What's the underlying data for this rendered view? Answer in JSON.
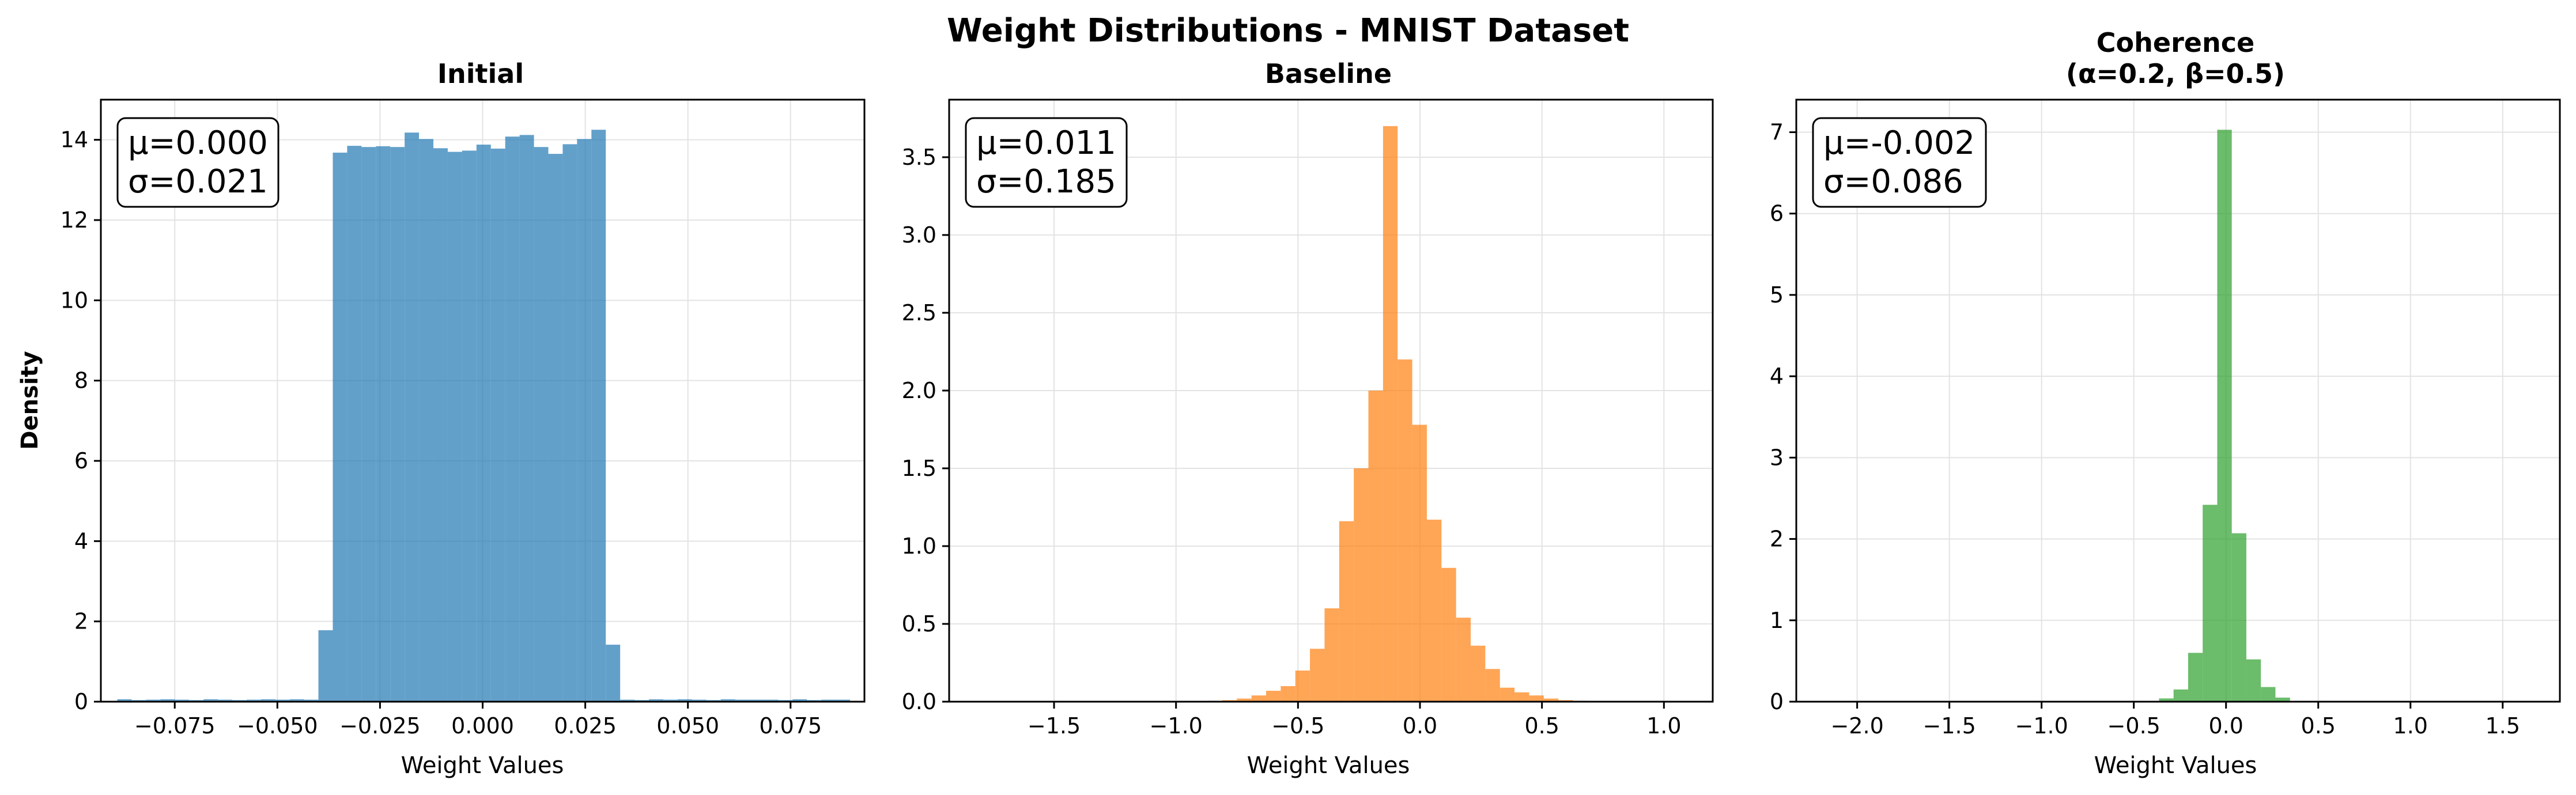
{
  "figure": {
    "title": "Weight Distributions - MNIST Dataset"
  },
  "chart_data": [
    {
      "type": "bar",
      "title": "Initial",
      "xlabel": "Weight Values",
      "ylabel": "Density",
      "xlim": [
        -0.093,
        0.093
      ],
      "ylim": [
        0,
        15
      ],
      "xticks": [
        -0.075,
        -0.05,
        -0.025,
        0.0,
        0.025,
        0.05,
        0.075
      ],
      "xtick_labels": [
        "−0.075",
        "−0.050",
        "−0.025",
        "0.000",
        "0.025",
        "0.050",
        "0.075"
      ],
      "yticks": [
        0,
        2,
        4,
        6,
        8,
        10,
        12,
        14
      ],
      "ytick_labels": [
        "0",
        "2",
        "4",
        "6",
        "8",
        "10",
        "12",
        "14"
      ],
      "grid": true,
      "color": "#1f77b4",
      "bin_edges_start": -0.089,
      "bin_width": 0.0035,
      "values": [
        0.06,
        0.04,
        0.05,
        0.06,
        0.05,
        0.04,
        0.06,
        0.05,
        0.04,
        0.05,
        0.06,
        0.05,
        0.06,
        0.05,
        1.78,
        13.68,
        13.85,
        13.82,
        13.84,
        13.82,
        14.18,
        14.02,
        13.79,
        13.7,
        13.73,
        13.88,
        13.78,
        14.08,
        14.12,
        13.82,
        13.65,
        13.89,
        14.02,
        14.25,
        1.42,
        0.05,
        0.04,
        0.06,
        0.05,
        0.06,
        0.05,
        0.04,
        0.06,
        0.05,
        0.05,
        0.05,
        0.04,
        0.06,
        0.04,
        0.05,
        0.05
      ],
      "stats": {
        "mu": "μ=0.000",
        "sigma": "σ=0.021"
      }
    },
    {
      "type": "bar",
      "title": "Baseline",
      "xlabel": "Weight Values",
      "xlim": [
        -1.93,
        1.2
      ],
      "ylim": [
        0,
        3.87
      ],
      "xticks": [
        -1.5,
        -1.0,
        -0.5,
        0.0,
        0.5,
        1.0
      ],
      "xtick_labels": [
        "−1.5",
        "−1.0",
        "−0.5",
        "0.0",
        "0.5",
        "1.0"
      ],
      "yticks": [
        0,
        0.5,
        1.0,
        1.5,
        2.0,
        2.5,
        3.0,
        3.5
      ],
      "ytick_labels": [
        "0.0",
        "0.5",
        "1.0",
        "1.5",
        "2.0",
        "2.5",
        "3.0",
        "3.5"
      ],
      "grid": true,
      "color": "#ff7f0e",
      "bin_edges_start": -1.05,
      "bin_width": 0.0599,
      "values": [
        0.002,
        0.003,
        0.004,
        0.006,
        0.01,
        0.02,
        0.04,
        0.07,
        0.1,
        0.2,
        0.34,
        0.6,
        1.16,
        1.5,
        2.0,
        3.7,
        2.2,
        1.78,
        1.17,
        0.86,
        0.54,
        0.36,
        0.21,
        0.09,
        0.06,
        0.04,
        0.02,
        0.01,
        0.006,
        0.004,
        0.003,
        0.002
      ],
      "stats": {
        "mu": "μ=0.011",
        "sigma": "σ=0.185"
      }
    },
    {
      "type": "bar",
      "title": "Coherence",
      "subtitle": "(α=0.2, β=0.5)",
      "xlabel": "Weight Values",
      "xlim": [
        -2.33,
        1.81
      ],
      "ylim": [
        0,
        7.4
      ],
      "xticks": [
        -2.0,
        -1.5,
        -1.0,
        -0.5,
        0.0,
        0.5,
        1.0,
        1.5
      ],
      "xtick_labels": [
        "−2.0",
        "−1.5",
        "−1.0",
        "−0.5",
        "0.0",
        "0.5",
        "1.0",
        "1.5"
      ],
      "yticks": [
        0,
        1,
        2,
        3,
        4,
        5,
        6,
        7
      ],
      "ytick_labels": [
        "0",
        "1",
        "2",
        "3",
        "4",
        "5",
        "6",
        "7"
      ],
      "grid": true,
      "color": "#2ca02c",
      "bin_edges_start": -0.6,
      "bin_width": 0.0789,
      "values": [
        0.002,
        0.003,
        0.01,
        0.04,
        0.15,
        0.6,
        2.42,
        7.03,
        2.07,
        0.52,
        0.18,
        0.05,
        0.01,
        0.004,
        0.002
      ],
      "stats": {
        "mu": "μ=-0.002",
        "sigma": "σ=0.086"
      }
    }
  ]
}
